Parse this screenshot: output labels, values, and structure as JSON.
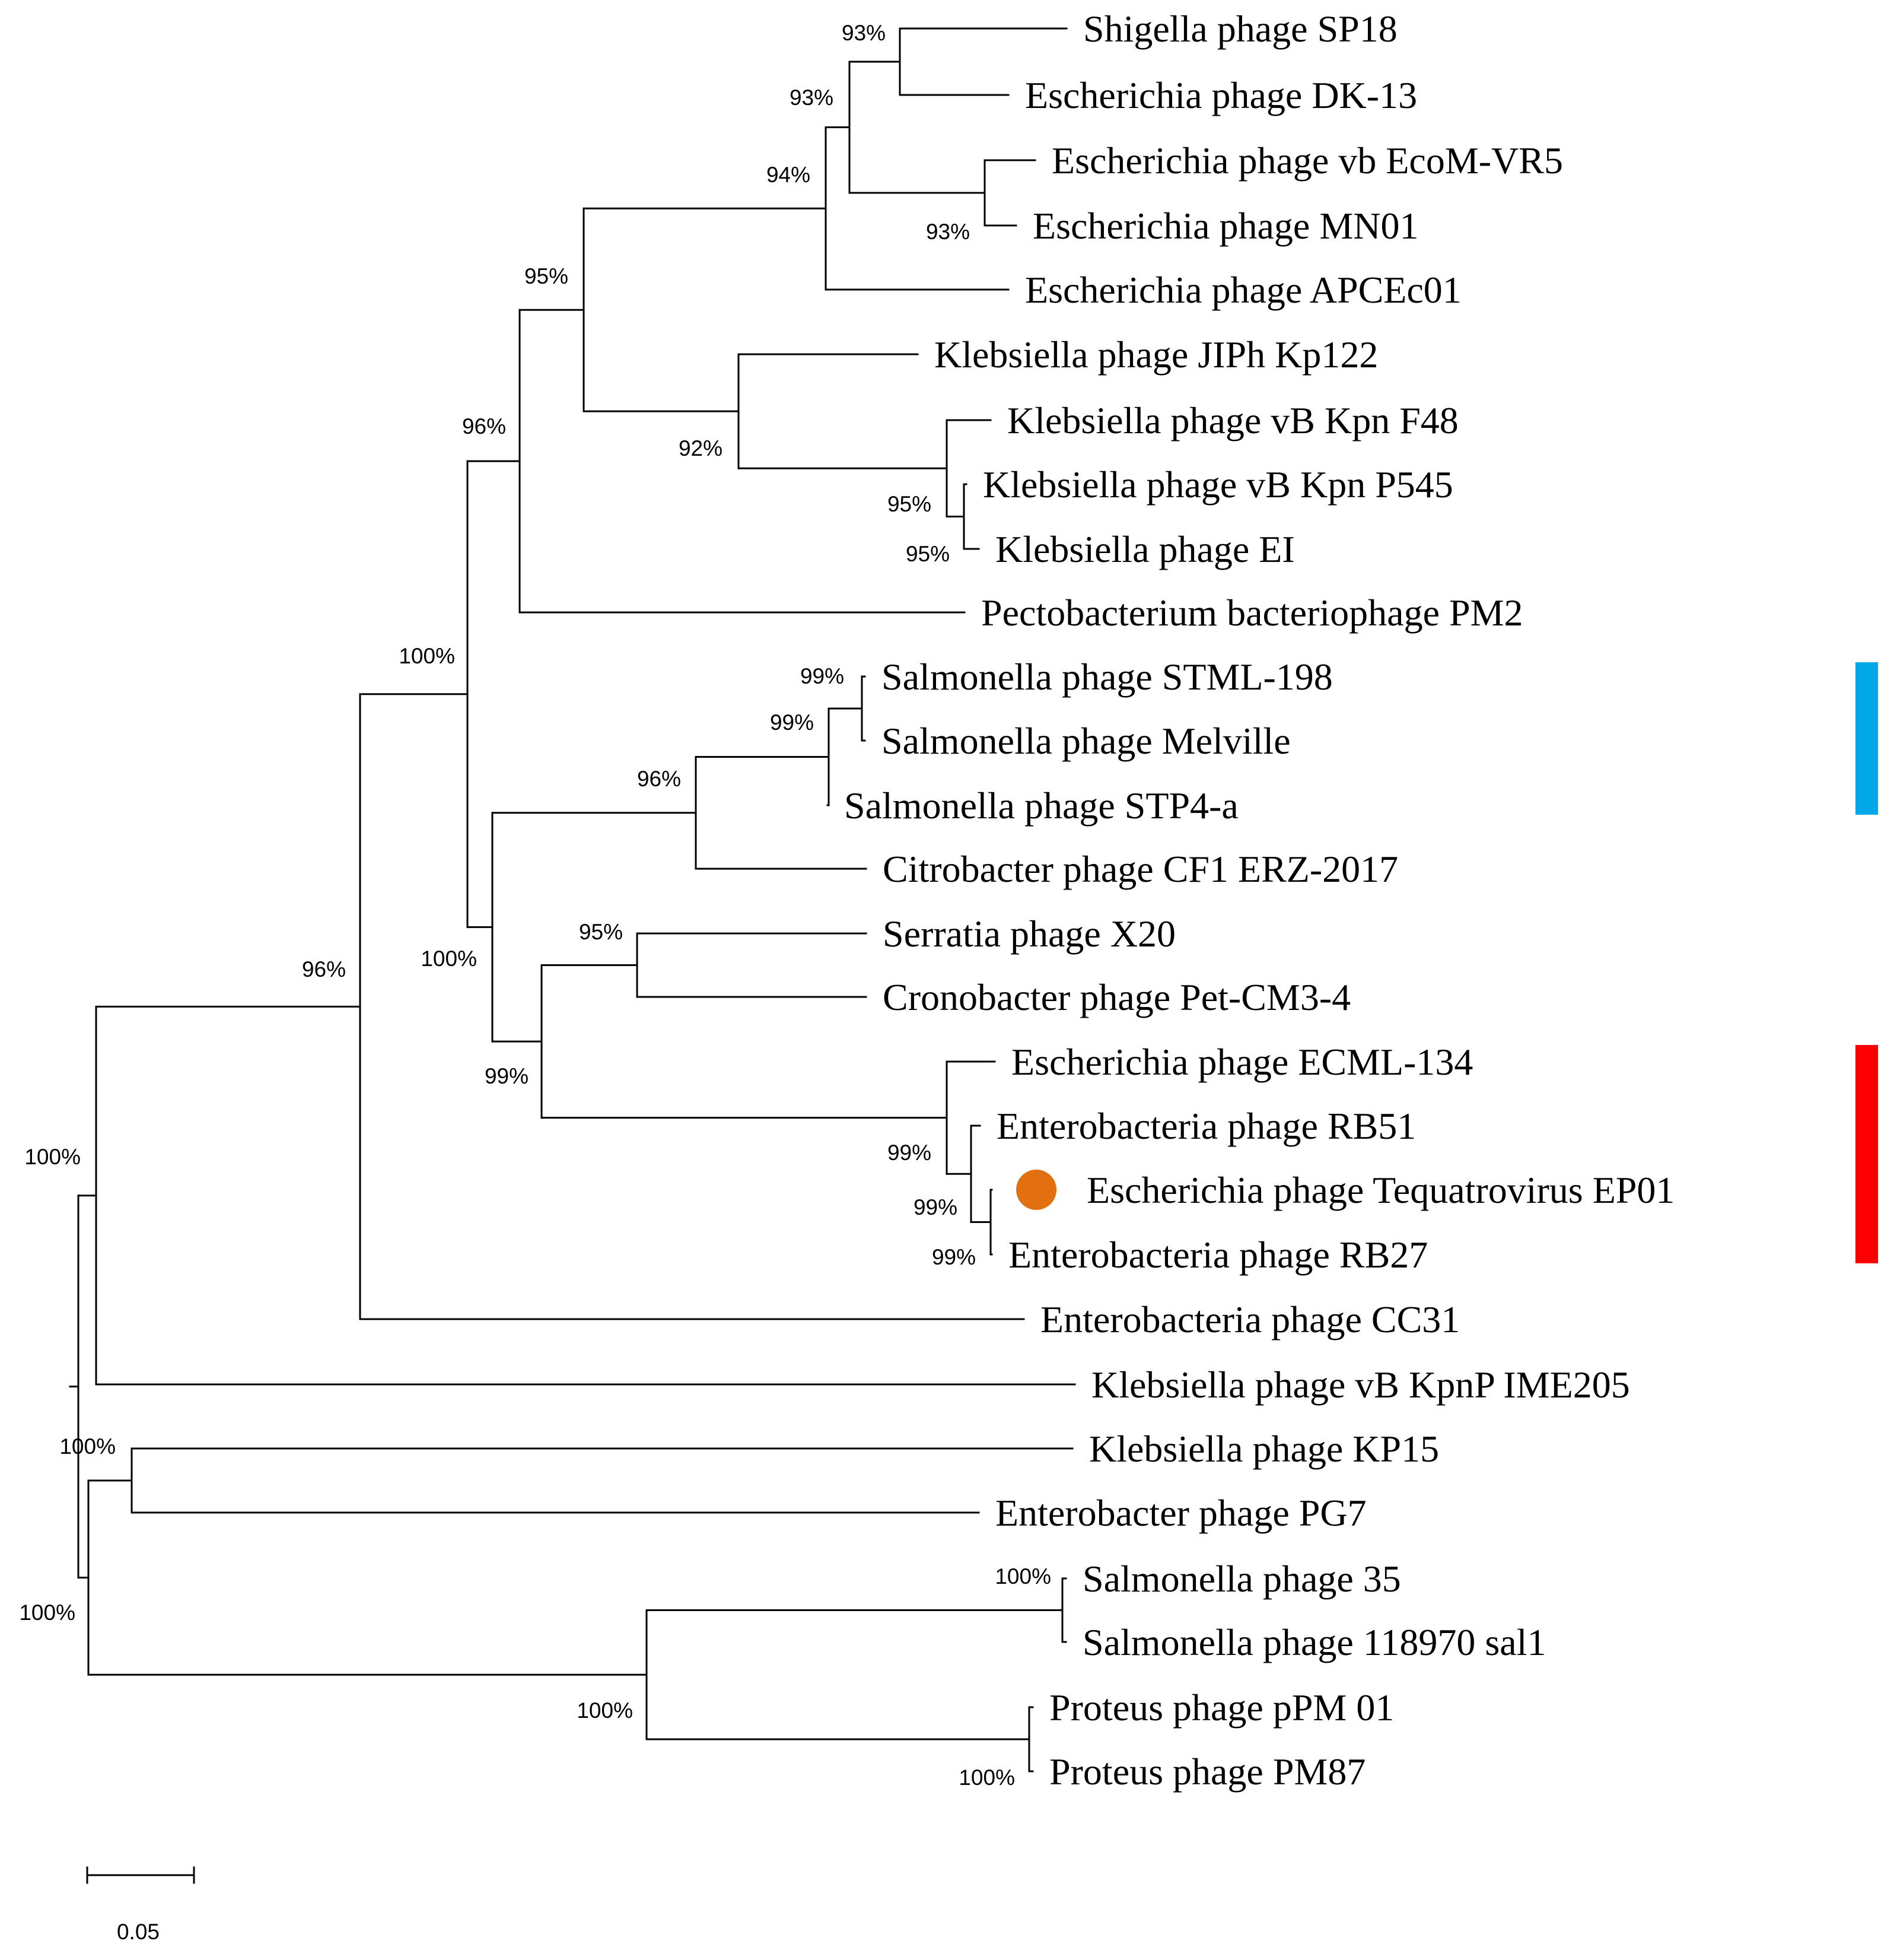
{
  "tree": {
    "taxa": [
      {
        "id": "sp18",
        "label": "Shigella phage SP18"
      },
      {
        "id": "dk13",
        "label": "Escherichia phage DK-13"
      },
      {
        "id": "vr5",
        "label": "Escherichia phage vb EcoM-VR5"
      },
      {
        "id": "mn01",
        "label": "Escherichia phage MN01"
      },
      {
        "id": "apcec01",
        "label": "Escherichia phage APCEc01"
      },
      {
        "id": "kp122",
        "label": "Klebsiella phage JIPh Kp122"
      },
      {
        "id": "f48",
        "label": "Klebsiella phage vB Kpn F48"
      },
      {
        "id": "p545",
        "label": "Klebsiella phage vB Kpn P545"
      },
      {
        "id": "ei",
        "label": "Klebsiella phage EI"
      },
      {
        "id": "pm2",
        "label": "Pectobacterium bacteriophage PM2"
      },
      {
        "id": "stml198",
        "label": "Salmonella phage STML-198"
      },
      {
        "id": "melville",
        "label": "Salmonella phage Melville"
      },
      {
        "id": "stp4a",
        "label": "Salmonella phage STP4-a"
      },
      {
        "id": "cf1",
        "label": "Citrobacter phage CF1 ERZ-2017"
      },
      {
        "id": "x20",
        "label": "Serratia phage X20"
      },
      {
        "id": "petcm34",
        "label": "Cronobacter phage Pet-CM3-4"
      },
      {
        "id": "ecml134",
        "label": "Escherichia phage ECML-134"
      },
      {
        "id": "rb51",
        "label": "Enterobacteria phage RB51"
      },
      {
        "id": "ep01",
        "label": "Escherichia phage Tequatrovirus EP01",
        "marker": "circle"
      },
      {
        "id": "rb27",
        "label": "Enterobacteria phage RB27"
      },
      {
        "id": "cc31",
        "label": "Enterobacteria phage CC31"
      },
      {
        "id": "ime205",
        "label": "Klebsiella phage vB KpnP IME205"
      },
      {
        "id": "kp15",
        "label": "Klebsiella phage KP15"
      },
      {
        "id": "pg7",
        "label": "Enterobacter phage PG7"
      },
      {
        "id": "s35",
        "label": "Salmonella phage 35"
      },
      {
        "id": "sal1",
        "label": "Salmonella phage 118970 sal1"
      },
      {
        "id": "ppm01",
        "label": "Proteus phage pPM 01"
      },
      {
        "id": "pm87",
        "label": "Proteus phage PM87"
      }
    ],
    "support_values": [
      {
        "node": "n_sp18_dk13",
        "label": "93%"
      },
      {
        "node": "n_sp18_vr5",
        "label": "93%"
      },
      {
        "node": "n_vr5_mn01",
        "label": "93%"
      },
      {
        "node": "n_esc",
        "label": "94%"
      },
      {
        "node": "n_esckleb",
        "label": "95%"
      },
      {
        "node": "n_kleb",
        "label": "92%"
      },
      {
        "node": "n_f48_p545",
        "label": "95%"
      },
      {
        "node": "n_p545_ei",
        "label": "95%"
      },
      {
        "node": "n_upper",
        "label": "96%"
      },
      {
        "node": "n_stml_mel",
        "label": "99%"
      },
      {
        "node": "n_salm",
        "label": "99%"
      },
      {
        "node": "n_salmcf1",
        "label": "96%"
      },
      {
        "node": "n_x20_pet",
        "label": "95%"
      },
      {
        "node": "n_lower_mid",
        "label": "100%"
      },
      {
        "node": "n_t4",
        "label": "99%"
      },
      {
        "node": "n_rb",
        "label": "99%"
      },
      {
        "node": "n_ep01_rb27",
        "label": "99%"
      },
      {
        "node": "n_rb51_sub",
        "label": "99%"
      },
      {
        "node": "n_mid",
        "label": "100%"
      },
      {
        "node": "n_main",
        "label": "96%"
      },
      {
        "node": "n_kp15_pg7",
        "label": "100%"
      },
      {
        "node": "n_root_top",
        "label": "100%"
      },
      {
        "node": "n_root_bot",
        "label": "100%"
      },
      {
        "node": "n_s35_sal1",
        "label": "100%"
      },
      {
        "node": "n_outgroup",
        "label": "100%"
      },
      {
        "node": "n_proteus",
        "label": "100%"
      }
    ],
    "scale_bar": {
      "label": "0.05"
    },
    "clade_markers": [
      {
        "name": "blue-clade-bar",
        "color": "#00a8e8",
        "from": "stml198",
        "to": "cf1"
      },
      {
        "name": "red-clade-bar",
        "color": "#ff0000",
        "from": "ecml134",
        "to": "rb27"
      }
    ],
    "highlight_color": "#e2700f"
  }
}
